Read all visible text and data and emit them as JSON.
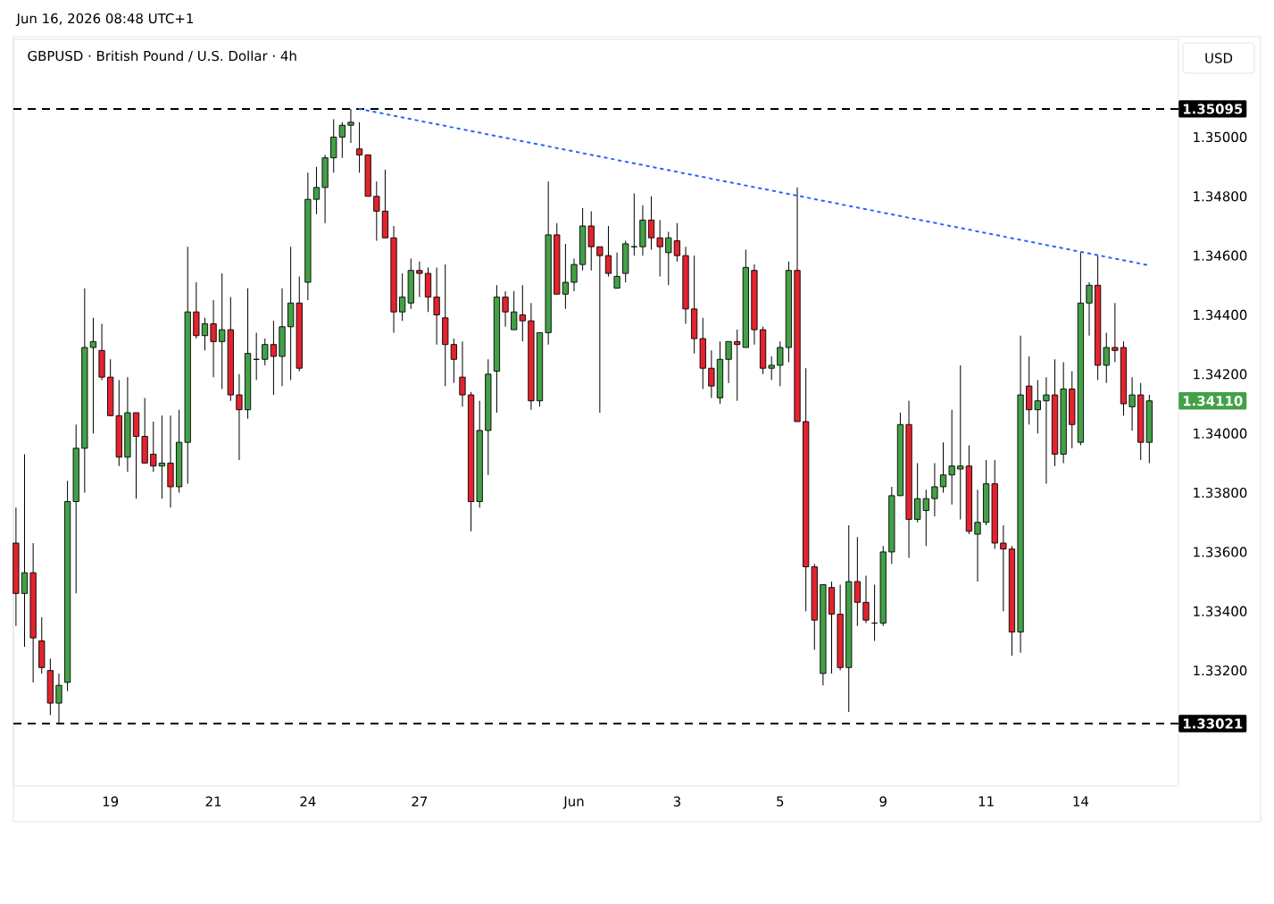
{
  "chart_data": {
    "type": "candlestick",
    "title": "GBPUSD · British Pound / U.S. Dollar · 4h",
    "annotations": [
      "Jun 16, 2026 08:48 UTC+1",
      "USD",
      "1.34110"
    ],
    "categories": [
      null,
      null,
      null,
      null,
      null,
      null,
      null,
      null,
      null,
      null,
      null,
      "19",
      null,
      null,
      null,
      null,
      null,
      null,
      null,
      null,
      null,
      null,
      null,
      "21",
      null,
      null,
      null,
      null,
      null,
      null,
      null,
      null,
      null,
      null,
      "24",
      null,
      null,
      null,
      null,
      null,
      null,
      null,
      null,
      null,
      null,
      null,
      null,
      "27",
      null,
      null,
      null,
      null,
      null,
      null,
      null,
      null,
      null,
      null,
      null,
      null,
      null,
      null,
      null,
      null,
      null,
      "Jun",
      null,
      null,
      null,
      null,
      null,
      null,
      null,
      null,
      null,
      null,
      null,
      "3",
      null,
      null,
      null,
      null,
      null,
      null,
      null,
      null,
      null,
      null,
      null,
      "5",
      null,
      null,
      null,
      null,
      null,
      null,
      null,
      null,
      null,
      null,
      null,
      "9",
      null,
      null,
      null,
      null,
      null,
      null,
      null,
      null,
      null,
      null,
      null,
      "11",
      null,
      null,
      null,
      null,
      null,
      null,
      null,
      null,
      null,
      null,
      "14",
      null,
      null,
      null,
      null,
      null,
      null,
      null,
      null
    ],
    "ohlc": [
      [
        1.3363,
        1.3375,
        1.3335,
        1.3346
      ],
      [
        1.3346,
        1.3393,
        1.3328,
        1.3353
      ],
      [
        1.3353,
        1.3363,
        1.3316,
        1.3331
      ],
      [
        1.333,
        1.3338,
        1.3319,
        1.3321
      ],
      [
        1.332,
        1.3324,
        1.3305,
        1.3309
      ],
      [
        1.3309,
        1.3319,
        1.33021,
        1.3315
      ],
      [
        1.3316,
        1.3384,
        1.3313,
        1.3377
      ],
      [
        1.3377,
        1.3403,
        1.3346,
        1.3395
      ],
      [
        1.3395,
        1.3449,
        1.338,
        1.3429
      ],
      [
        1.3429,
        1.3439,
        1.34,
        1.3431
      ],
      [
        1.3428,
        1.3437,
        1.3418,
        1.3419
      ],
      [
        1.3419,
        1.3425,
        1.3406,
        1.3406
      ],
      [
        1.3406,
        1.3418,
        1.3389,
        1.3392
      ],
      [
        1.3392,
        1.3419,
        1.3387,
        1.3407
      ],
      [
        1.3407,
        1.3407,
        1.3378,
        1.3399
      ],
      [
        1.3399,
        1.3412,
        1.339,
        1.339
      ],
      [
        1.3393,
        1.3404,
        1.3387,
        1.3389
      ],
      [
        1.3389,
        1.3406,
        1.3378,
        1.339
      ],
      [
        1.339,
        1.3406,
        1.3375,
        1.3382
      ],
      [
        1.3382,
        1.3408,
        1.338,
        1.3397
      ],
      [
        1.3397,
        1.3463,
        1.3383,
        1.3441
      ],
      [
        1.3441,
        1.3451,
        1.3432,
        1.3433
      ],
      [
        1.3433,
        1.3439,
        1.3428,
        1.3437
      ],
      [
        1.3437,
        1.3445,
        1.3419,
        1.3431
      ],
      [
        1.3431,
        1.3454,
        1.3415,
        1.3435
      ],
      [
        1.3435,
        1.3446,
        1.3411,
        1.3413
      ],
      [
        1.3413,
        1.342,
        1.3391,
        1.3408
      ],
      [
        1.3408,
        1.3449,
        1.3405,
        1.3427
      ],
      [
        1.3425,
        1.3434,
        1.3418,
        1.3425
      ],
      [
        1.3425,
        1.3432,
        1.3423,
        1.343
      ],
      [
        1.343,
        1.3438,
        1.3413,
        1.3426
      ],
      [
        1.3426,
        1.3449,
        1.3416,
        1.3436
      ],
      [
        1.3436,
        1.3463,
        1.3418,
        1.3444
      ],
      [
        1.3444,
        1.3453,
        1.3421,
        1.3422
      ],
      [
        1.3451,
        1.3488,
        1.3445,
        1.3479
      ],
      [
        1.3479,
        1.349,
        1.3474,
        1.3483
      ],
      [
        1.3483,
        1.3494,
        1.3471,
        1.3493
      ],
      [
        1.3493,
        1.3506,
        1.3488,
        1.35
      ],
      [
        1.35,
        1.3505,
        1.3493,
        1.3504
      ],
      [
        1.3504,
        1.35095,
        1.3498,
        1.3505
      ],
      [
        1.3496,
        1.3505,
        1.3488,
        1.3494
      ],
      [
        1.3494,
        1.3494,
        1.348,
        1.348
      ],
      [
        1.348,
        1.3485,
        1.3465,
        1.3475
      ],
      [
        1.3475,
        1.3489,
        1.3466,
        1.3466
      ],
      [
        1.3466,
        1.347,
        1.3434,
        1.3441
      ],
      [
        1.3441,
        1.3454,
        1.3438,
        1.3446
      ],
      [
        1.3444,
        1.3459,
        1.3442,
        1.3455
      ],
      [
        1.3455,
        1.3458,
        1.3446,
        1.3454
      ],
      [
        1.3454,
        1.3456,
        1.3441,
        1.3446
      ],
      [
        1.3446,
        1.3456,
        1.343,
        1.344
      ],
      [
        1.3439,
        1.3457,
        1.3416,
        1.343
      ],
      [
        1.343,
        1.3432,
        1.3417,
        1.3425
      ],
      [
        1.3419,
        1.3431,
        1.3409,
        1.3413
      ],
      [
        1.3413,
        1.3414,
        1.3367,
        1.3377
      ],
      [
        1.3377,
        1.3411,
        1.3375,
        1.3401
      ],
      [
        1.3401,
        1.3425,
        1.3386,
        1.342
      ],
      [
        1.3421,
        1.345,
        1.3407,
        1.3446
      ],
      [
        1.3446,
        1.3448,
        1.3436,
        1.3441
      ],
      [
        1.3435,
        1.3448,
        1.3435,
        1.3441
      ],
      [
        1.344,
        1.345,
        1.3431,
        1.3438
      ],
      [
        1.3438,
        1.3444,
        1.3408,
        1.3411
      ],
      [
        1.3411,
        1.3434,
        1.3409,
        1.3434
      ],
      [
        1.3434,
        1.3485,
        1.343,
        1.3467
      ],
      [
        1.3467,
        1.3471,
        1.3447,
        1.3447
      ],
      [
        1.3447,
        1.3464,
        1.3442,
        1.3451
      ],
      [
        1.3451,
        1.3459,
        1.3448,
        1.3457
      ],
      [
        1.3457,
        1.3476,
        1.3455,
        1.347
      ],
      [
        1.347,
        1.3475,
        1.3455,
        1.3463
      ],
      [
        1.3463,
        1.3463,
        1.3407,
        1.346
      ],
      [
        1.346,
        1.347,
        1.3453,
        1.3454
      ],
      [
        1.3449,
        1.3461,
        1.3449,
        1.3453
      ],
      [
        1.3454,
        1.3465,
        1.3451,
        1.3464
      ],
      [
        1.3463,
        1.3481,
        1.346,
        1.3463
      ],
      [
        1.3463,
        1.3477,
        1.346,
        1.3472
      ],
      [
        1.3472,
        1.348,
        1.3462,
        1.3466
      ],
      [
        1.3466,
        1.3472,
        1.3453,
        1.3463
      ],
      [
        1.3461,
        1.3468,
        1.345,
        1.3466
      ],
      [
        1.3465,
        1.3471,
        1.3458,
        1.346
      ],
      [
        1.346,
        1.3463,
        1.3437,
        1.3442
      ],
      [
        1.3442,
        1.346,
        1.3427,
        1.3432
      ],
      [
        1.3432,
        1.3439,
        1.3415,
        1.3422
      ],
      [
        1.3422,
        1.3428,
        1.3412,
        1.3416
      ],
      [
        1.3412,
        1.3431,
        1.341,
        1.3425
      ],
      [
        1.3425,
        1.3431,
        1.3417,
        1.3431
      ],
      [
        1.3431,
        1.3435,
        1.3411,
        1.343
      ],
      [
        1.3429,
        1.3462,
        1.3429,
        1.3456
      ],
      [
        1.3455,
        1.3457,
        1.343,
        1.3435
      ],
      [
        1.3435,
        1.3436,
        1.342,
        1.3422
      ],
      [
        1.3422,
        1.3426,
        1.3418,
        1.3423
      ],
      [
        1.3423,
        1.3431,
        1.3416,
        1.3429
      ],
      [
        1.3429,
        1.3458,
        1.3424,
        1.3455
      ],
      [
        1.3455,
        1.3483,
        1.3404,
        1.3404
      ],
      [
        1.3404,
        1.3422,
        1.334,
        1.3355
      ],
      [
        1.3355,
        1.3356,
        1.3327,
        1.3337
      ],
      [
        1.3319,
        1.3349,
        1.3315,
        1.3349
      ],
      [
        1.3348,
        1.335,
        1.3319,
        1.3339
      ],
      [
        1.3339,
        1.3349,
        1.332,
        1.3321
      ],
      [
        1.3321,
        1.3369,
        1.3306,
        1.335
      ],
      [
        1.335,
        1.3365,
        1.3335,
        1.3343
      ],
      [
        1.3343,
        1.3352,
        1.3336,
        1.3337
      ],
      [
        1.3336,
        1.3349,
        1.333,
        1.3336
      ],
      [
        1.3336,
        1.3362,
        1.3335,
        1.336
      ],
      [
        1.336,
        1.3382,
        1.3356,
        1.3379
      ],
      [
        1.3379,
        1.3407,
        1.3379,
        1.3403
      ],
      [
        1.3403,
        1.3411,
        1.3358,
        1.3371
      ],
      [
        1.3371,
        1.339,
        1.337,
        1.3378
      ],
      [
        1.3374,
        1.3381,
        1.3362,
        1.3378
      ],
      [
        1.3378,
        1.339,
        1.3372,
        1.3382
      ],
      [
        1.3382,
        1.3397,
        1.338,
        1.3386
      ],
      [
        1.3386,
        1.3408,
        1.3376,
        1.3389
      ],
      [
        1.3388,
        1.3423,
        1.3371,
        1.3389
      ],
      [
        1.3389,
        1.3396,
        1.3366,
        1.3367
      ],
      [
        1.3366,
        1.3381,
        1.335,
        1.337
      ],
      [
        1.337,
        1.3391,
        1.3369,
        1.3383
      ],
      [
        1.3383,
        1.3391,
        1.3361,
        1.3363
      ],
      [
        1.3363,
        1.3369,
        1.334,
        1.3361
      ],
      [
        1.3361,
        1.3362,
        1.3325,
        1.3333
      ],
      [
        1.3333,
        1.3433,
        1.3326,
        1.3413
      ],
      [
        1.3416,
        1.3426,
        1.3403,
        1.3408
      ],
      [
        1.3408,
        1.3418,
        1.34,
        1.3411
      ],
      [
        1.3411,
        1.3419,
        1.3383,
        1.3413
      ],
      [
        1.3413,
        1.3425,
        1.3389,
        1.3393
      ],
      [
        1.3393,
        1.3424,
        1.339,
        1.3415
      ],
      [
        1.3415,
        1.3421,
        1.3395,
        1.3403
      ],
      [
        1.3397,
        1.3461,
        1.3396,
        1.3444
      ],
      [
        1.3444,
        1.3451,
        1.3433,
        1.345
      ],
      [
        1.345,
        1.346,
        1.3418,
        1.3423
      ],
      [
        1.3423,
        1.3434,
        1.3417,
        1.3429
      ],
      [
        1.3429,
        1.3444,
        1.3424,
        1.3428
      ],
      [
        1.3429,
        1.3431,
        1.3406,
        1.341
      ],
      [
        1.3409,
        1.3419,
        1.3401,
        1.3413
      ],
      [
        1.3413,
        1.3417,
        1.3391,
        1.3397
      ],
      [
        1.3397,
        1.3413,
        1.339,
        1.3411
      ]
    ],
    "series": [
      {
        "type": "line",
        "values": [
          null,
          null,
          null,
          null,
          null,
          null,
          null,
          null,
          null,
          null,
          null,
          null,
          null,
          null,
          null,
          null,
          null,
          null,
          null,
          null,
          null,
          null,
          null,
          null,
          null,
          null,
          null,
          null,
          null,
          null,
          null,
          null,
          null,
          null,
          null,
          null,
          null,
          null,
          null,
          null,
          1.35095,
          null,
          null,
          null,
          null,
          null,
          null,
          null,
          null,
          null,
          null,
          null,
          null,
          null,
          null,
          null,
          null,
          null,
          null,
          null,
          null,
          null,
          null,
          null,
          null,
          null,
          null,
          null,
          null,
          null,
          null,
          null,
          null,
          null,
          null,
          null,
          null,
          null,
          null,
          null,
          null,
          null,
          null,
          null,
          null,
          null,
          null,
          null,
          null,
          null,
          null,
          null,
          null,
          null,
          null,
          null,
          null,
          null,
          null,
          null,
          null,
          null,
          null,
          null,
          null,
          null,
          null,
          null,
          null,
          null,
          null,
          null,
          null,
          null,
          null,
          null,
          null,
          null,
          null,
          null,
          null,
          null,
          null,
          null,
          null,
          null,
          null,
          null,
          null,
          null,
          null,
          null,
          1.34567
        ],
        "color": "#2962ff",
        "line_style": "dotted"
      }
    ],
    "ylim": [
      1.3281,
      1.3533
    ],
    "yticks": [
      {
        "value": 1.332,
        "label": "1.33200"
      },
      {
        "value": 1.334,
        "label": "1.33400"
      },
      {
        "value": 1.336,
        "label": "1.33600"
      },
      {
        "value": 1.338,
        "label": "1.33800"
      },
      {
        "value": 1.34,
        "label": "1.34000"
      },
      {
        "value": 1.342,
        "label": "1.34200"
      },
      {
        "value": 1.344,
        "label": "1.34400"
      },
      {
        "value": 1.346,
        "label": "1.34600"
      },
      {
        "value": 1.348,
        "label": "1.34800"
      },
      {
        "value": 1.35,
        "label": "1.35000"
      }
    ],
    "ref_lines": [
      {
        "axis": "y",
        "value": 1.35095,
        "label": "1.35095",
        "color": "#000000",
        "line_style": "dashed"
      },
      {
        "axis": "y",
        "value": 1.33021,
        "label": "1.33021",
        "color": "#000000",
        "line_style": "dashed"
      }
    ]
  }
}
